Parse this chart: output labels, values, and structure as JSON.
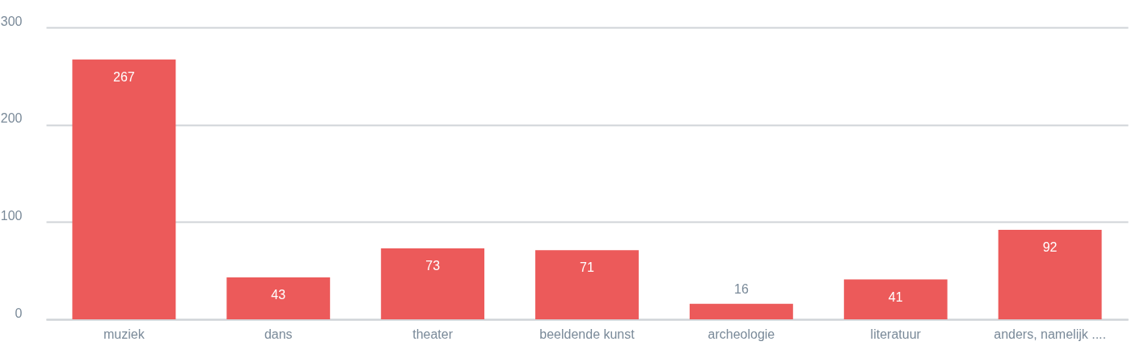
{
  "chart_data": {
    "type": "bar",
    "categories": [
      "muziek",
      "dans",
      "theater",
      "beeldende kunst",
      "archeologie",
      "literatuur",
      "anders, namelijk ...."
    ],
    "values": [
      267,
      43,
      73,
      71,
      16,
      41,
      92
    ],
    "color": "#ec5a5a",
    "ylim": [
      0,
      300
    ],
    "yticks": [
      0,
      100,
      200,
      300
    ],
    "grid": "y",
    "data_labels": true
  }
}
